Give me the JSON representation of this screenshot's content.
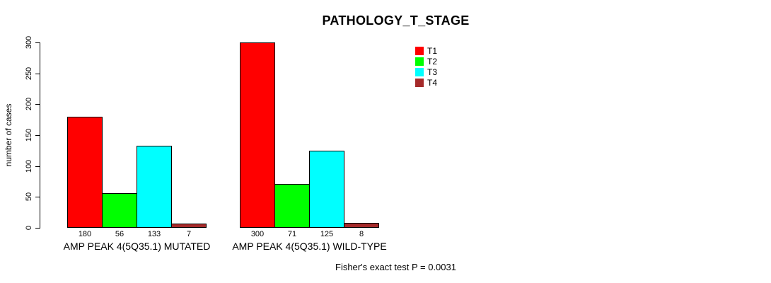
{
  "title": "PATHOLOGY_T_STAGE",
  "footer": "Fisher's exact test P = 0.0031",
  "chart_data": {
    "type": "bar",
    "title": "PATHOLOGY_T_STAGE",
    "xlabel": "",
    "ylabel": "number of cases",
    "ylim": [
      0,
      300
    ],
    "yticks": [
      0,
      50,
      100,
      150,
      200,
      250,
      300
    ],
    "grid": false,
    "legend_position": "top-right",
    "bar_value_labels": true,
    "categories": [
      "AMP PEAK 4(5Q35.1) MUTATED",
      "AMP PEAK 4(5Q35.1) WILD-TYPE"
    ],
    "series": [
      {
        "name": "T1",
        "color": "#FF0000",
        "values": [
          180,
          300
        ]
      },
      {
        "name": "T2",
        "color": "#00FF00",
        "values": [
          56,
          71
        ]
      },
      {
        "name": "T3",
        "color": "#00FFFF",
        "values": [
          133,
          125
        ]
      },
      {
        "name": "T4",
        "color": "#A52A2A",
        "values": [
          7,
          8
        ]
      }
    ],
    "annotation": "Fisher's exact test P = 0.0031"
  }
}
